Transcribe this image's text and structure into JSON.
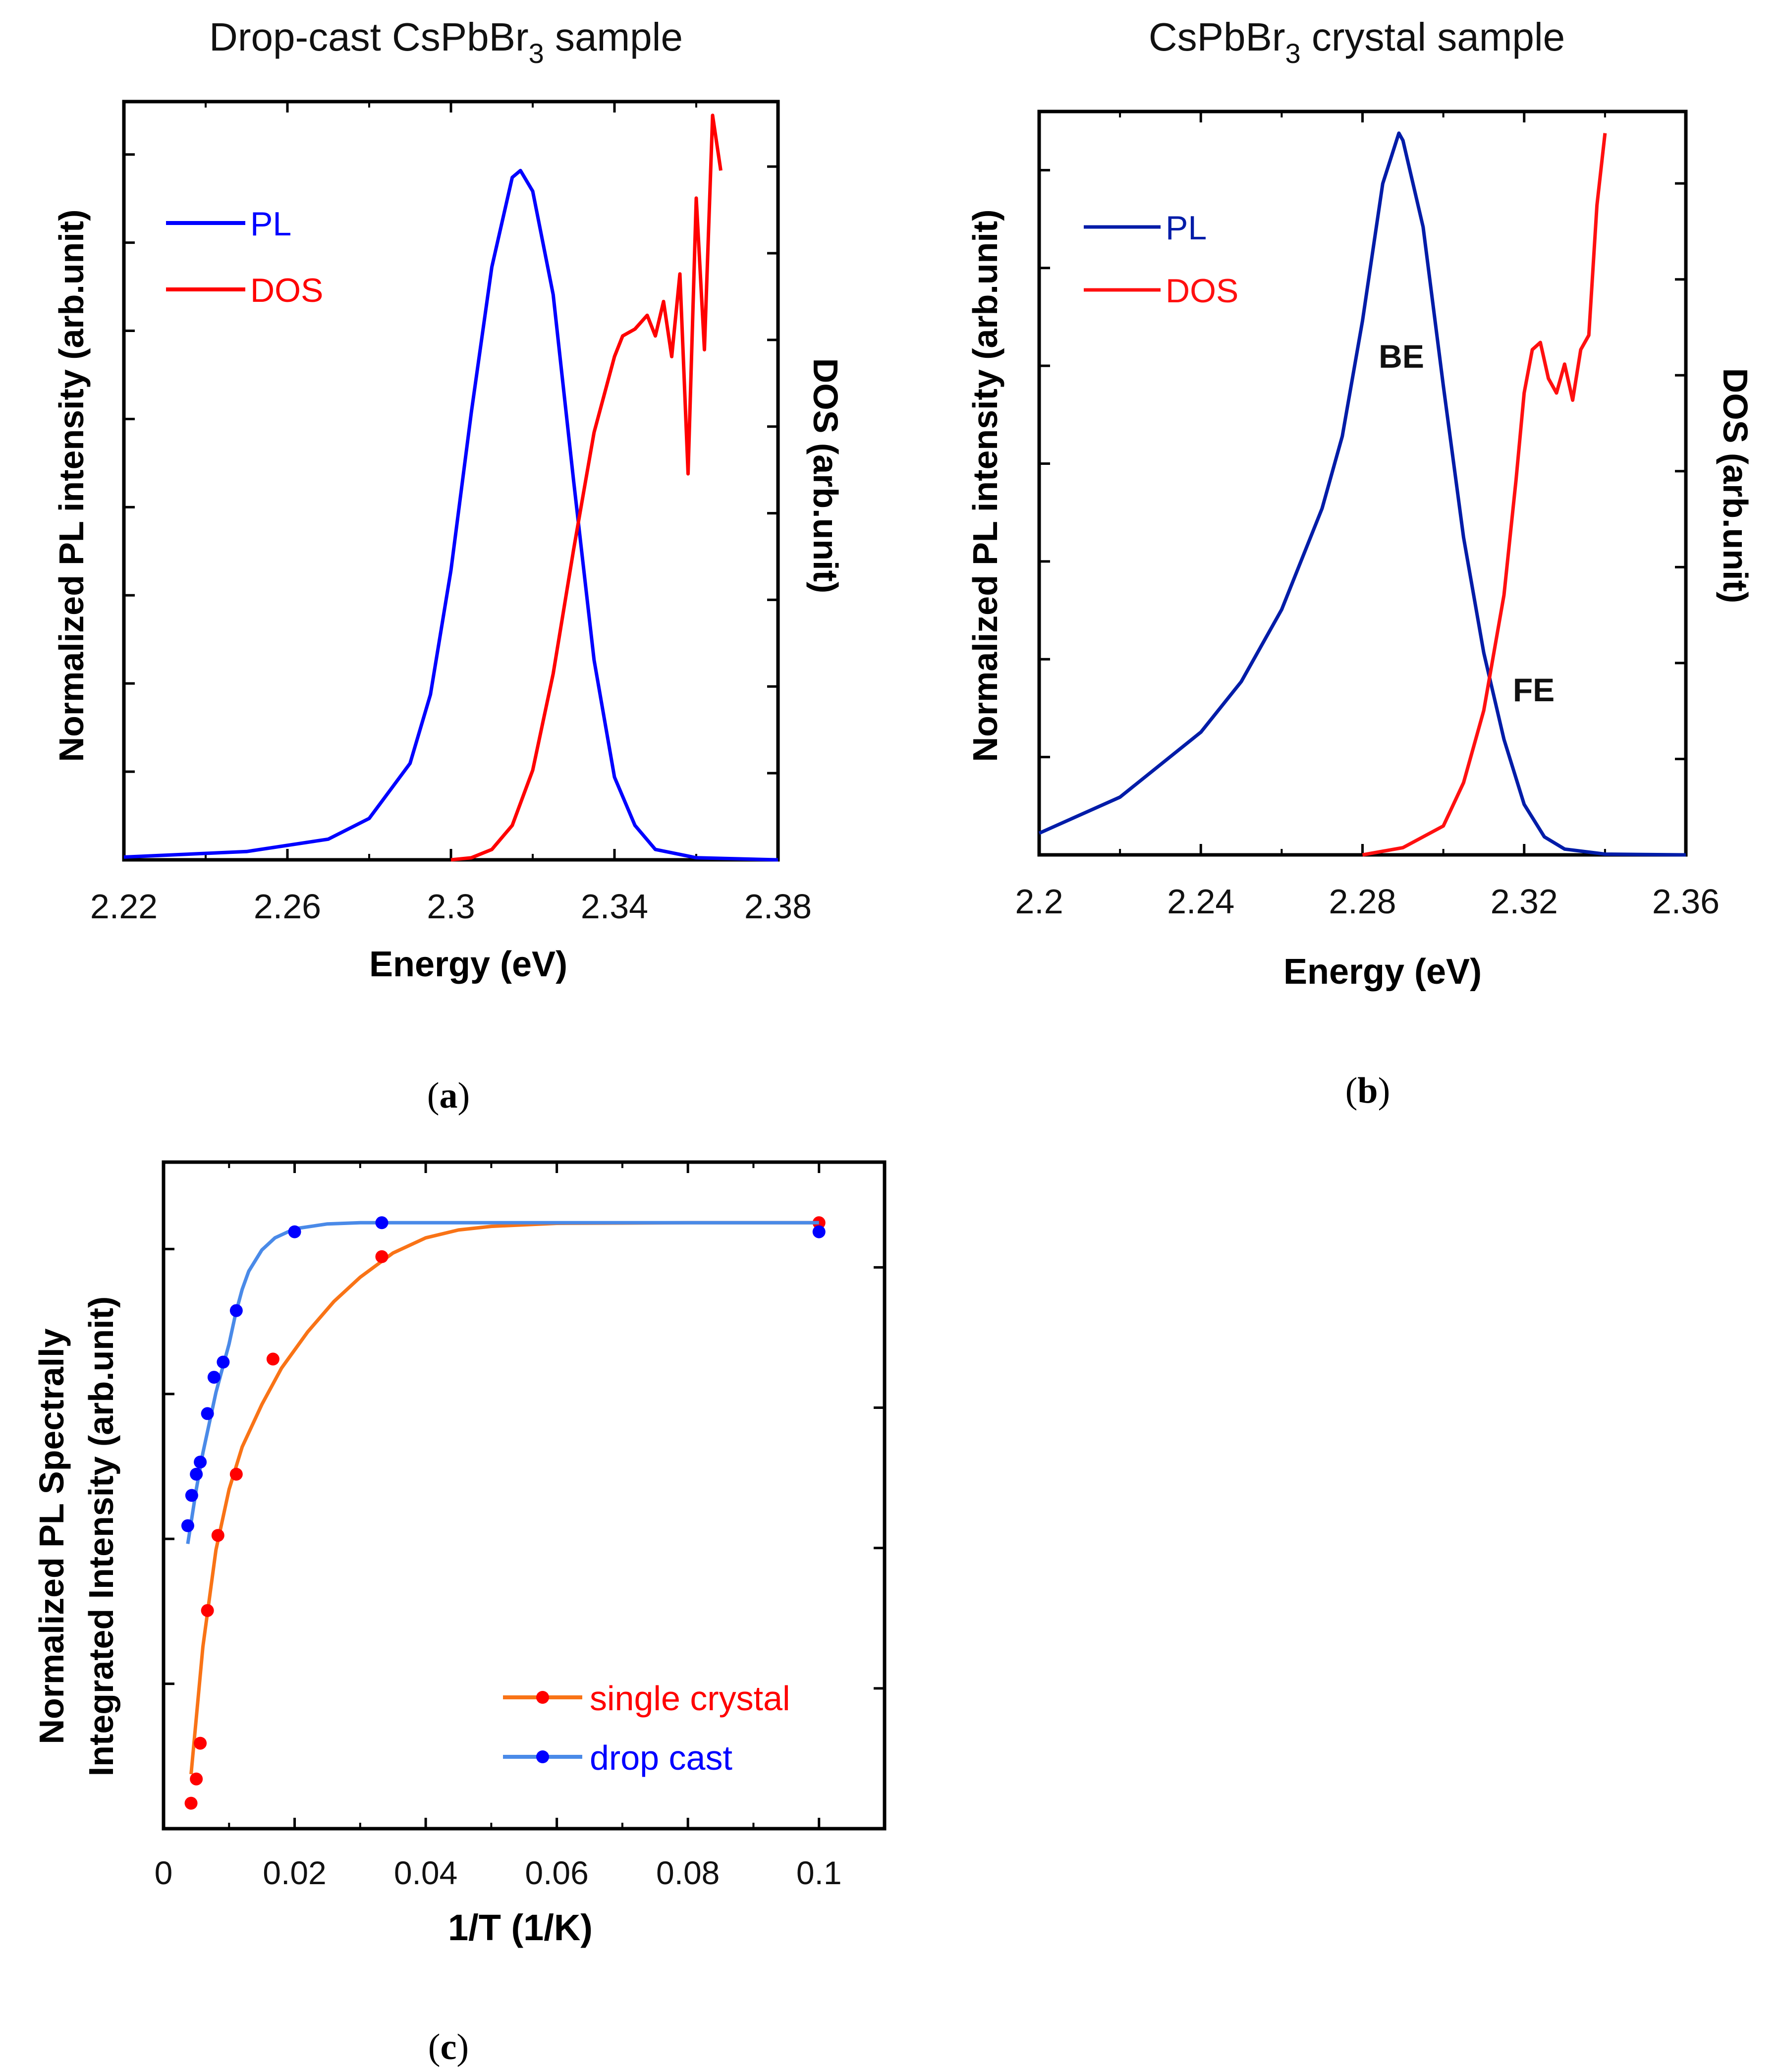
{
  "charts": [
    {
      "title_main": "Drop-cast CsPbBr",
      "title_sub": "3",
      "title_rest": " sample",
      "xlabel": "Energy (eV)",
      "ylabel": "Normalized PL intensity (arb.unit)",
      "y2label": "DOS (arb.unit)",
      "panel_open": "(",
      "panel_letter": "a",
      "panel_close": ")",
      "legend": [
        {
          "label": "PL",
          "color": "#0000ff"
        },
        {
          "label": "DOS",
          "color": "#ff0000"
        }
      ],
      "annotations": []
    },
    {
      "title_main": "CsPbBr",
      "title_sub": "3",
      "title_rest": " crystal sample",
      "xlabel": "Energy (eV)",
      "ylabel": "Normalized PL intensity (arb.unit)",
      "y2label": "DOS (arb.unit)",
      "panel_open": "(",
      "panel_letter": "b",
      "panel_close": ")",
      "legend": [
        {
          "label": "PL",
          "color": "#001ca8"
        },
        {
          "label": "DOS",
          "color": "#ff1010"
        }
      ],
      "annotations": [
        {
          "text": "BE"
        },
        {
          "text": "FE"
        }
      ]
    },
    {
      "xlabel": "1/T  (1/K)",
      "ylabel_line1": "Normalized PL Spectrally",
      "ylabel_line2": "Integrated Intensity (arb.unit)",
      "panel_open": "(",
      "panel_letter": "c",
      "panel_close": ")",
      "legend": [
        {
          "label": "single crystal",
          "color": "#ff0000",
          "line": "#f97316"
        },
        {
          "label": "drop cast",
          "color": "#0000ff",
          "line": "#4a8ae8"
        }
      ]
    }
  ],
  "chart_data": [
    {
      "type": "line",
      "title": "Drop-cast CsPbBr3 sample",
      "xlabel": "Energy (eV)",
      "ylabel": "Normalized PL intensity (arb.unit)",
      "y2label": "DOS (arb.unit)",
      "xlim": [
        2.22,
        2.38
      ],
      "ylim": [
        0,
        1.1
      ],
      "xticks": [
        2.22,
        2.26,
        2.3,
        2.34,
        2.38
      ],
      "xtick_labels": [
        "2.22",
        "2.26",
        "2.3",
        "2.34",
        "2.38"
      ],
      "series": [
        {
          "name": "PL",
          "color": "#0000ff",
          "x": [
            2.22,
            2.25,
            2.27,
            2.28,
            2.29,
            2.295,
            2.3,
            2.305,
            2.31,
            2.315,
            2.317,
            2.32,
            2.325,
            2.33,
            2.335,
            2.34,
            2.345,
            2.35,
            2.36,
            2.38
          ],
          "y": [
            0.004,
            0.012,
            0.03,
            0.06,
            0.14,
            0.24,
            0.42,
            0.65,
            0.86,
            0.99,
            1.0,
            0.97,
            0.82,
            0.55,
            0.29,
            0.12,
            0.05,
            0.015,
            0.003,
            0.0
          ]
        },
        {
          "name": "DOS",
          "color": "#ff0000",
          "x": [
            2.3,
            2.305,
            2.31,
            2.315,
            2.32,
            2.325,
            2.33,
            2.335,
            2.34,
            2.342,
            2.345,
            2.348,
            2.35,
            2.352,
            2.354,
            2.356,
            2.358,
            2.36,
            2.362,
            2.364,
            2.366
          ],
          "y": [
            0.0,
            0.003,
            0.015,
            0.05,
            0.13,
            0.27,
            0.45,
            0.62,
            0.73,
            0.76,
            0.77,
            0.79,
            0.76,
            0.81,
            0.73,
            0.85,
            0.56,
            0.96,
            0.74,
            1.08,
            1.0
          ]
        }
      ]
    },
    {
      "type": "line",
      "title": "CsPbBr3 crystal sample",
      "xlabel": "Energy (eV)",
      "ylabel": "Normalized PL intensity (arb.unit)",
      "y2label": "DOS (arb.unit)",
      "xlim": [
        2.2,
        2.36
      ],
      "ylim": [
        0,
        1.03
      ],
      "xticks": [
        2.2,
        2.24,
        2.28,
        2.32,
        2.36
      ],
      "xtick_labels": [
        "2.2",
        "2.24",
        "2.28",
        "2.32",
        "2.36"
      ],
      "series": [
        {
          "name": "PL",
          "color": "#001ca8",
          "x": [
            2.2,
            2.22,
            2.24,
            2.25,
            2.26,
            2.27,
            2.275,
            2.28,
            2.285,
            2.289,
            2.29,
            2.295,
            2.3,
            2.305,
            2.31,
            2.315,
            2.32,
            2.325,
            2.33,
            2.34,
            2.36
          ],
          "y": [
            0.03,
            0.08,
            0.17,
            0.24,
            0.34,
            0.48,
            0.58,
            0.74,
            0.93,
            1.0,
            0.99,
            0.87,
            0.65,
            0.44,
            0.28,
            0.16,
            0.07,
            0.025,
            0.008,
            0.001,
            0.0
          ]
        },
        {
          "name": "DOS",
          "color": "#ff1010",
          "x": [
            2.28,
            2.29,
            2.3,
            2.305,
            2.31,
            2.315,
            2.318,
            2.32,
            2.322,
            2.324,
            2.326,
            2.328,
            2.33,
            2.332,
            2.334,
            2.336,
            2.338,
            2.34
          ],
          "y": [
            0.0,
            0.01,
            0.04,
            0.1,
            0.2,
            0.36,
            0.52,
            0.64,
            0.7,
            0.71,
            0.66,
            0.64,
            0.68,
            0.63,
            0.7,
            0.72,
            0.9,
            1.0
          ]
        }
      ]
    },
    {
      "type": "scatter",
      "xlabel": "1/T  (1/K)",
      "ylabel": "Normalized PL Spectrally Integrated Intensity (arb.unit)",
      "xlim": [
        0,
        0.11
      ],
      "ylim": [
        0,
        1.1
      ],
      "xticks": [
        0,
        0.02,
        0.04,
        0.06,
        0.08,
        0.1
      ],
      "xtick_labels": [
        "0",
        "0.02",
        "0.04",
        "0.06",
        "0.08",
        "0.1"
      ],
      "series": [
        {
          "name": "single crystal",
          "color": "#ff0000",
          "line_color": "#f97316",
          "x": [
            0.0042,
            0.005,
            0.0056,
            0.0067,
            0.0083,
            0.0111,
            0.0167,
            0.0333,
            0.1
          ],
          "y": [
            0.042,
            0.082,
            0.141,
            0.36,
            0.484,
            0.585,
            0.775,
            0.944,
            1.0
          ],
          "fit_x": [
            0.0042,
            0.006,
            0.008,
            0.01,
            0.012,
            0.015,
            0.018,
            0.022,
            0.026,
            0.03,
            0.035,
            0.04,
            0.045,
            0.05,
            0.06,
            0.08,
            0.1
          ],
          "fit_y": [
            0.09,
            0.3,
            0.46,
            0.56,
            0.63,
            0.7,
            0.76,
            0.82,
            0.87,
            0.91,
            0.95,
            0.975,
            0.988,
            0.994,
            0.999,
            1.0,
            1.0
          ]
        },
        {
          "name": "drop cast",
          "color": "#0000ff",
          "line_color": "#4a8ae8",
          "x": [
            0.0037,
            0.0043,
            0.005,
            0.0056,
            0.0067,
            0.0077,
            0.0091,
            0.0111,
            0.02,
            0.0333,
            0.1
          ],
          "y": [
            0.5,
            0.55,
            0.585,
            0.605,
            0.685,
            0.745,
            0.77,
            0.855,
            0.985,
            1.0,
            0.985
          ],
          "fit_x": [
            0.0037,
            0.005,
            0.006,
            0.007,
            0.008,
            0.009,
            0.01,
            0.011,
            0.012,
            0.013,
            0.015,
            0.017,
            0.02,
            0.025,
            0.03,
            0.04,
            0.06,
            0.1
          ],
          "fit_y": [
            0.47,
            0.56,
            0.62,
            0.67,
            0.72,
            0.76,
            0.8,
            0.85,
            0.89,
            0.92,
            0.955,
            0.975,
            0.99,
            0.998,
            1.0,
            1.0,
            1.0,
            1.0
          ]
        }
      ]
    }
  ]
}
